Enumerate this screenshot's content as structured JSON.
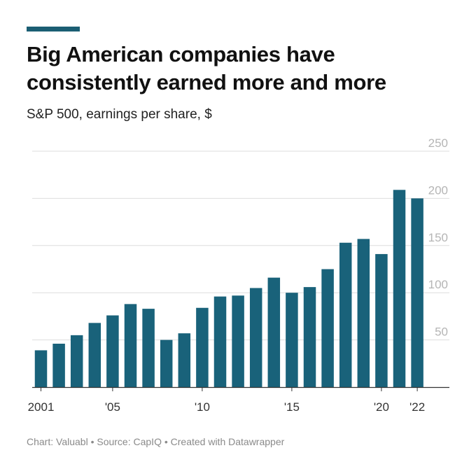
{
  "header": {
    "title_line1": "Big American companies have",
    "title_line2": "consistently earned more and more",
    "subtitle": "S&P 500, earnings per share, $"
  },
  "footer": {
    "credit": "Chart: Valuabl • Source: CapIQ • Created with Datawrapper"
  },
  "colors": {
    "bar": "#19627a",
    "accent": "#1b5e73",
    "gridline": "#dddddd",
    "tick_text": "#b5b5b5",
    "axis": "#333333"
  },
  "chart_data": {
    "type": "bar",
    "title": "Big American companies have consistently earned more and more",
    "subtitle": "S&P 500, earnings per share, $",
    "xlabel": "",
    "ylabel": "",
    "categories": [
      "2001",
      "2002",
      "2003",
      "2004",
      "2005",
      "2006",
      "2007",
      "2008",
      "2009",
      "2010",
      "2011",
      "2012",
      "2013",
      "2014",
      "2015",
      "2016",
      "2017",
      "2018",
      "2019",
      "2020",
      "2021",
      "2022"
    ],
    "values": [
      39,
      46,
      55,
      68,
      76,
      88,
      83,
      50,
      57,
      84,
      96,
      97,
      105,
      116,
      100,
      106,
      125,
      153,
      157,
      141,
      209,
      200
    ],
    "ylim": [
      0,
      250
    ],
    "yticks": [
      50,
      100,
      150,
      200,
      250
    ],
    "ytick_labels": [
      "50",
      "100",
      "150",
      "200",
      "250"
    ],
    "xtick_labels": [
      {
        "category": "2001",
        "label": "2001"
      },
      {
        "category": "2005",
        "label": "'05"
      },
      {
        "category": "2010",
        "label": "'10"
      },
      {
        "category": "2015",
        "label": "'15"
      },
      {
        "category": "2020",
        "label": "'20"
      },
      {
        "category": "2022",
        "label": "'22"
      }
    ],
    "grid": true,
    "legend": "none"
  }
}
